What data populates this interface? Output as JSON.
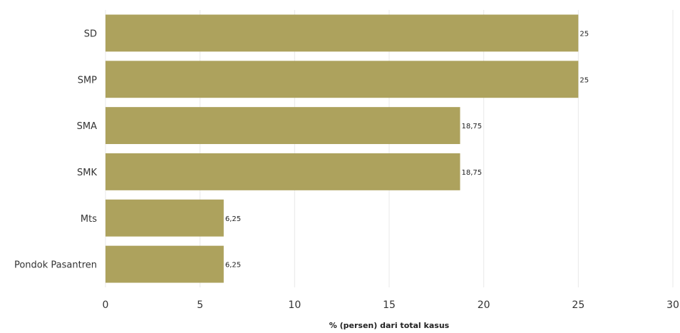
{
  "chart_data": {
    "type": "bar",
    "orientation": "horizontal",
    "categories": [
      "SD",
      "SMP",
      "SMA",
      "SMK",
      "Mts",
      "Pondok Pasantren"
    ],
    "values": [
      25,
      25,
      18.75,
      18.75,
      6.25,
      6.25
    ],
    "value_labels": [
      "25",
      "25",
      "18,75",
      "18,75",
      "6,25",
      "6,25"
    ],
    "xlabel": "% (persen) dari total kasus",
    "ylabel": "",
    "title": "",
    "xlim": [
      0,
      30
    ],
    "xticks": [
      0,
      5,
      10,
      15,
      20,
      25,
      30
    ],
    "grid": "vertical",
    "legend": "none",
    "bar_color": "#ADA25D"
  }
}
